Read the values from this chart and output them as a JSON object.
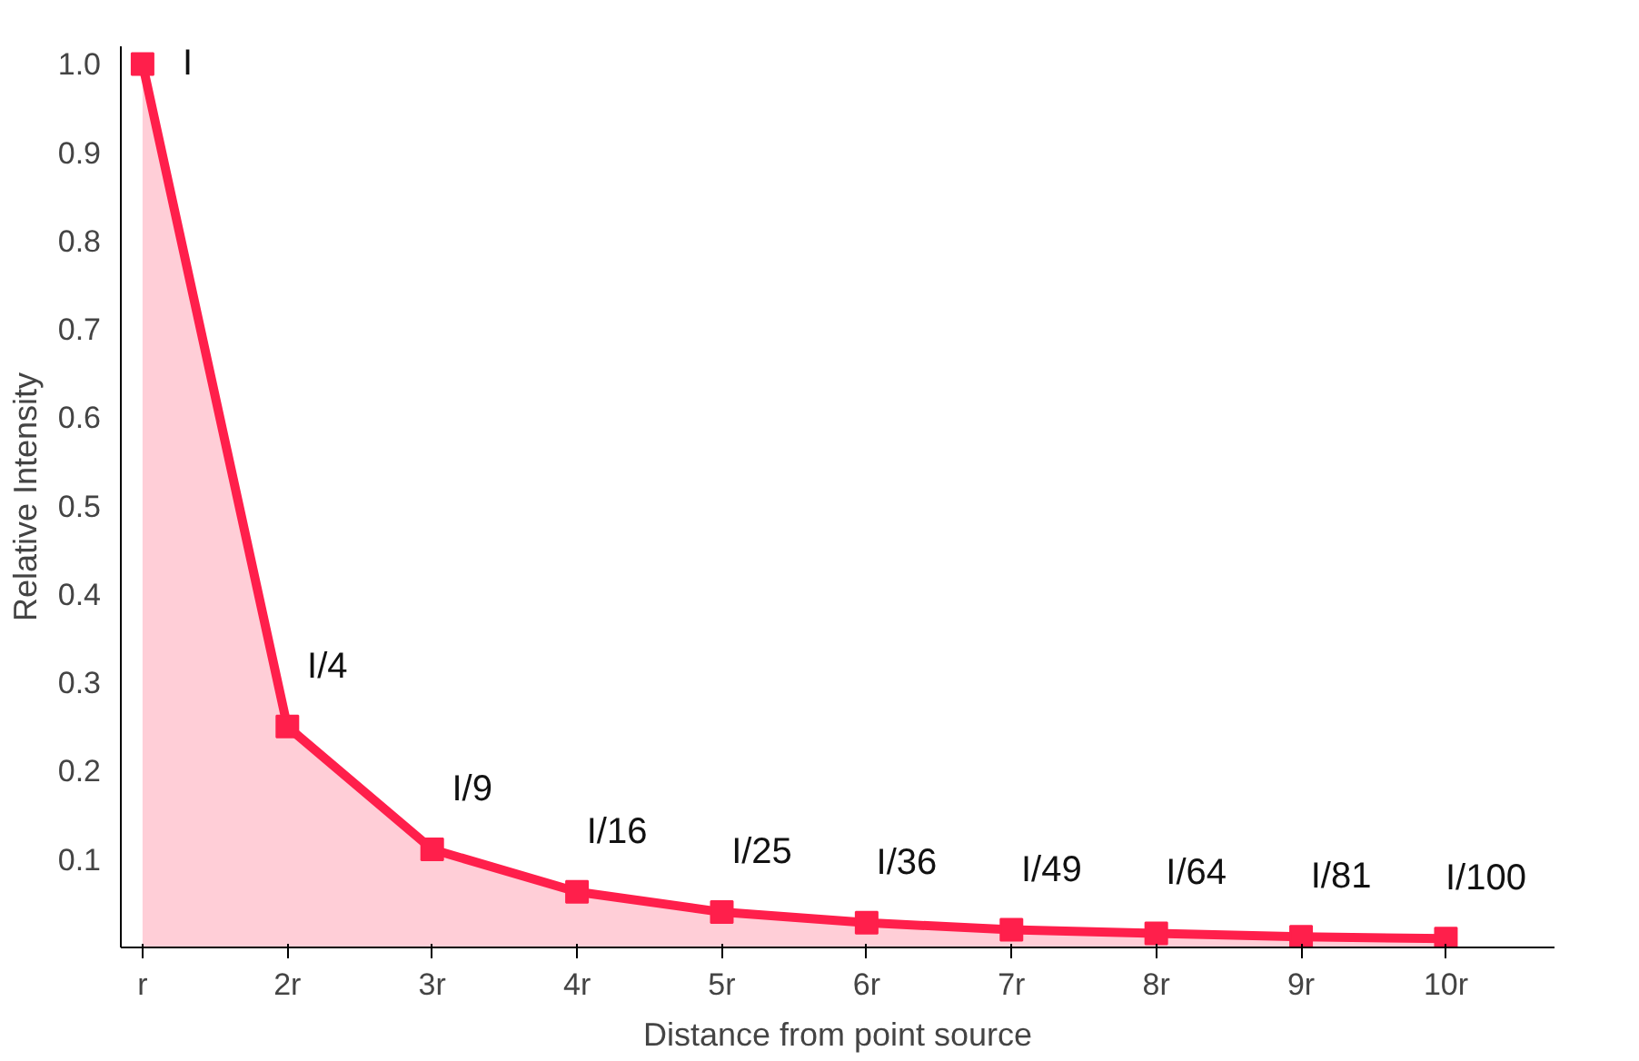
{
  "chart_data": {
    "type": "area",
    "xlabel": "Distance from point source",
    "ylabel": "Relative Intensity",
    "categories": [
      "r",
      "2r",
      "3r",
      "4r",
      "5r",
      "6r",
      "7r",
      "8r",
      "9r",
      "10r"
    ],
    "series": [
      {
        "color": "#ff1f4b",
        "values": [
          1.0,
          0.25,
          0.111,
          0.063,
          0.04,
          0.028,
          0.02,
          0.016,
          0.012,
          0.01
        ]
      }
    ],
    "annotations": [
      {
        "text": "I",
        "x": "r",
        "y": 1.0
      },
      {
        "text": "I/4",
        "x": "2r",
        "y": 0.25
      },
      {
        "text": "I/9",
        "x": "3r",
        "y": 0.111
      },
      {
        "text": "I/16",
        "x": "4r",
        "y": 0.063
      },
      {
        "text": "I/25",
        "x": "5r",
        "y": 0.04
      },
      {
        "text": "I/36",
        "x": "6r",
        "y": 0.028
      },
      {
        "text": "I/49",
        "x": "7r",
        "y": 0.02
      },
      {
        "text": "I/64",
        "x": "8r",
        "y": 0.016
      },
      {
        "text": "I/81",
        "x": "9r",
        "y": 0.012
      },
      {
        "text": "I/100",
        "x": "10r",
        "y": 0.01
      }
    ],
    "ylim": [
      0,
      1.02
    ],
    "yticks": [
      {
        "value": 0.1,
        "label": "0.1"
      },
      {
        "value": 0.2,
        "label": "0.2"
      },
      {
        "value": 0.3,
        "label": "0.3"
      },
      {
        "value": 0.4,
        "label": "0.4"
      },
      {
        "value": 0.5,
        "label": "0.5"
      },
      {
        "value": 0.6,
        "label": "0.6"
      },
      {
        "value": 0.7,
        "label": "0.7"
      },
      {
        "value": 0.8,
        "label": "0.8"
      },
      {
        "value": 0.9,
        "label": "0.9"
      },
      {
        "value": 1.0,
        "label": "1.0"
      }
    ],
    "marker": "square",
    "grid": false
  }
}
